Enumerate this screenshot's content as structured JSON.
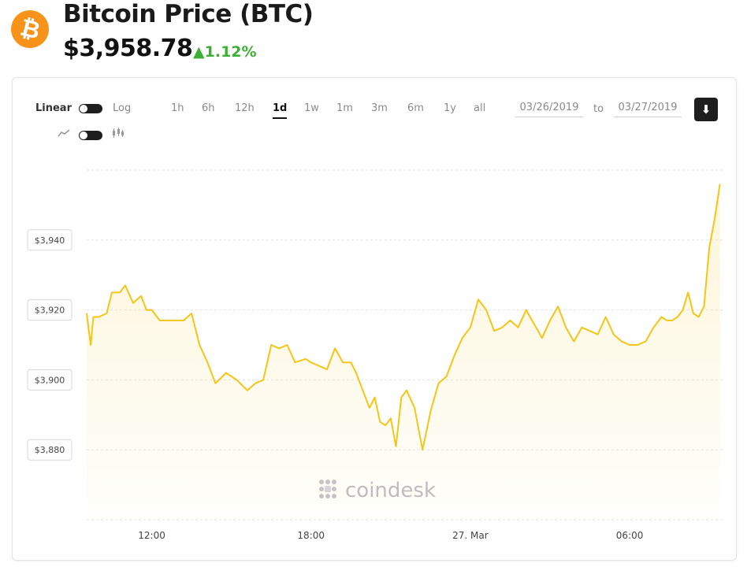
{
  "header": {
    "logo_glyph": "₿",
    "title": "Bitcoin Price",
    "ticker": "(BTC)",
    "price": "$3,958.78",
    "change": "1.12%",
    "change_arrow": "▲",
    "change_color": "#3cb034",
    "brand_color": "#f7931a"
  },
  "controls": {
    "scale_left": "Linear",
    "scale_right": "Log",
    "line_icon": "line-chart-icon",
    "candle_icon": "candlestick-icon",
    "ranges": [
      "1h",
      "6h",
      "12h",
      "1d",
      "1w",
      "1m",
      "3m",
      "6m",
      "1y",
      "all"
    ],
    "active_range": "1d",
    "date_from": "03/26/2019",
    "date_to_label": "to",
    "date_to": "03/27/2019",
    "download_icon": "download-icon"
  },
  "watermark": "coindesk",
  "chart_data": {
    "type": "area",
    "line_color": "#f5c518",
    "yticks": [
      "$3,940",
      "$3,920",
      "$3,900",
      "$3,880"
    ],
    "ytick_values": [
      3940,
      3920,
      3900,
      3880
    ],
    "ylim": [
      3860,
      3960
    ],
    "xticks": [
      "12:00",
      "18:00",
      "27. Mar",
      "06:00"
    ],
    "xtick_hours": [
      12,
      18,
      24,
      30
    ],
    "xlim": [
      9.55,
      33.5
    ],
    "grid": true,
    "series": [
      {
        "x": [
          9.55,
          9.7,
          9.8,
          10.0,
          10.3,
          10.5,
          10.8,
          11.0,
          11.3,
          11.6,
          11.8,
          12.0,
          12.3,
          12.6,
          13.0,
          13.2,
          13.5,
          13.8,
          14.1,
          14.4,
          14.8,
          15.2,
          15.6,
          15.9,
          16.2,
          16.5,
          16.8,
          17.1,
          17.4,
          17.8,
          18.0,
          18.3,
          18.6,
          18.9,
          19.2,
          19.5,
          19.7,
          19.9,
          20.2,
          20.4,
          20.6,
          20.8,
          21.0,
          21.2,
          21.4,
          21.6,
          21.9,
          22.2,
          22.5,
          22.8,
          23.1,
          23.4,
          23.7,
          24.0,
          24.3,
          24.6,
          24.9,
          25.2,
          25.5,
          25.8,
          26.1,
          26.4,
          26.7,
          27.0,
          27.3,
          27.6,
          27.9,
          28.2,
          28.5,
          28.8,
          29.1,
          29.4,
          29.7,
          30.0,
          30.3,
          30.6,
          30.9,
          31.2,
          31.4,
          31.6,
          31.8,
          32.0,
          32.2,
          32.4,
          32.6,
          32.8,
          33.0,
          33.2,
          33.4
        ],
        "y": [
          3919,
          3910,
          3918,
          3918,
          3919,
          3925,
          3925,
          3927,
          3922,
          3924,
          3920,
          3920,
          3917,
          3917,
          3917,
          3917,
          3919,
          3910,
          3905,
          3899,
          3902,
          3900,
          3897,
          3899,
          3900,
          3910,
          3909,
          3910,
          3905,
          3906,
          3905,
          3904,
          3903,
          3909,
          3905,
          3905,
          3902,
          3898,
          3892,
          3895,
          3888,
          3887,
          3889,
          3881,
          3895,
          3897,
          3892,
          3880,
          3891,
          3899,
          3901,
          3907,
          3912,
          3915,
          3923,
          3920,
          3914,
          3915,
          3917,
          3915,
          3920,
          3916,
          3912,
          3917,
          3921,
          3915,
          3911,
          3915,
          3914,
          3913,
          3918,
          3913,
          3911,
          3910,
          3910,
          3911,
          3915,
          3918,
          3917,
          3917,
          3918,
          3920,
          3925,
          3919,
          3918,
          3921,
          3938,
          3946,
          3956
        ]
      }
    ]
  }
}
